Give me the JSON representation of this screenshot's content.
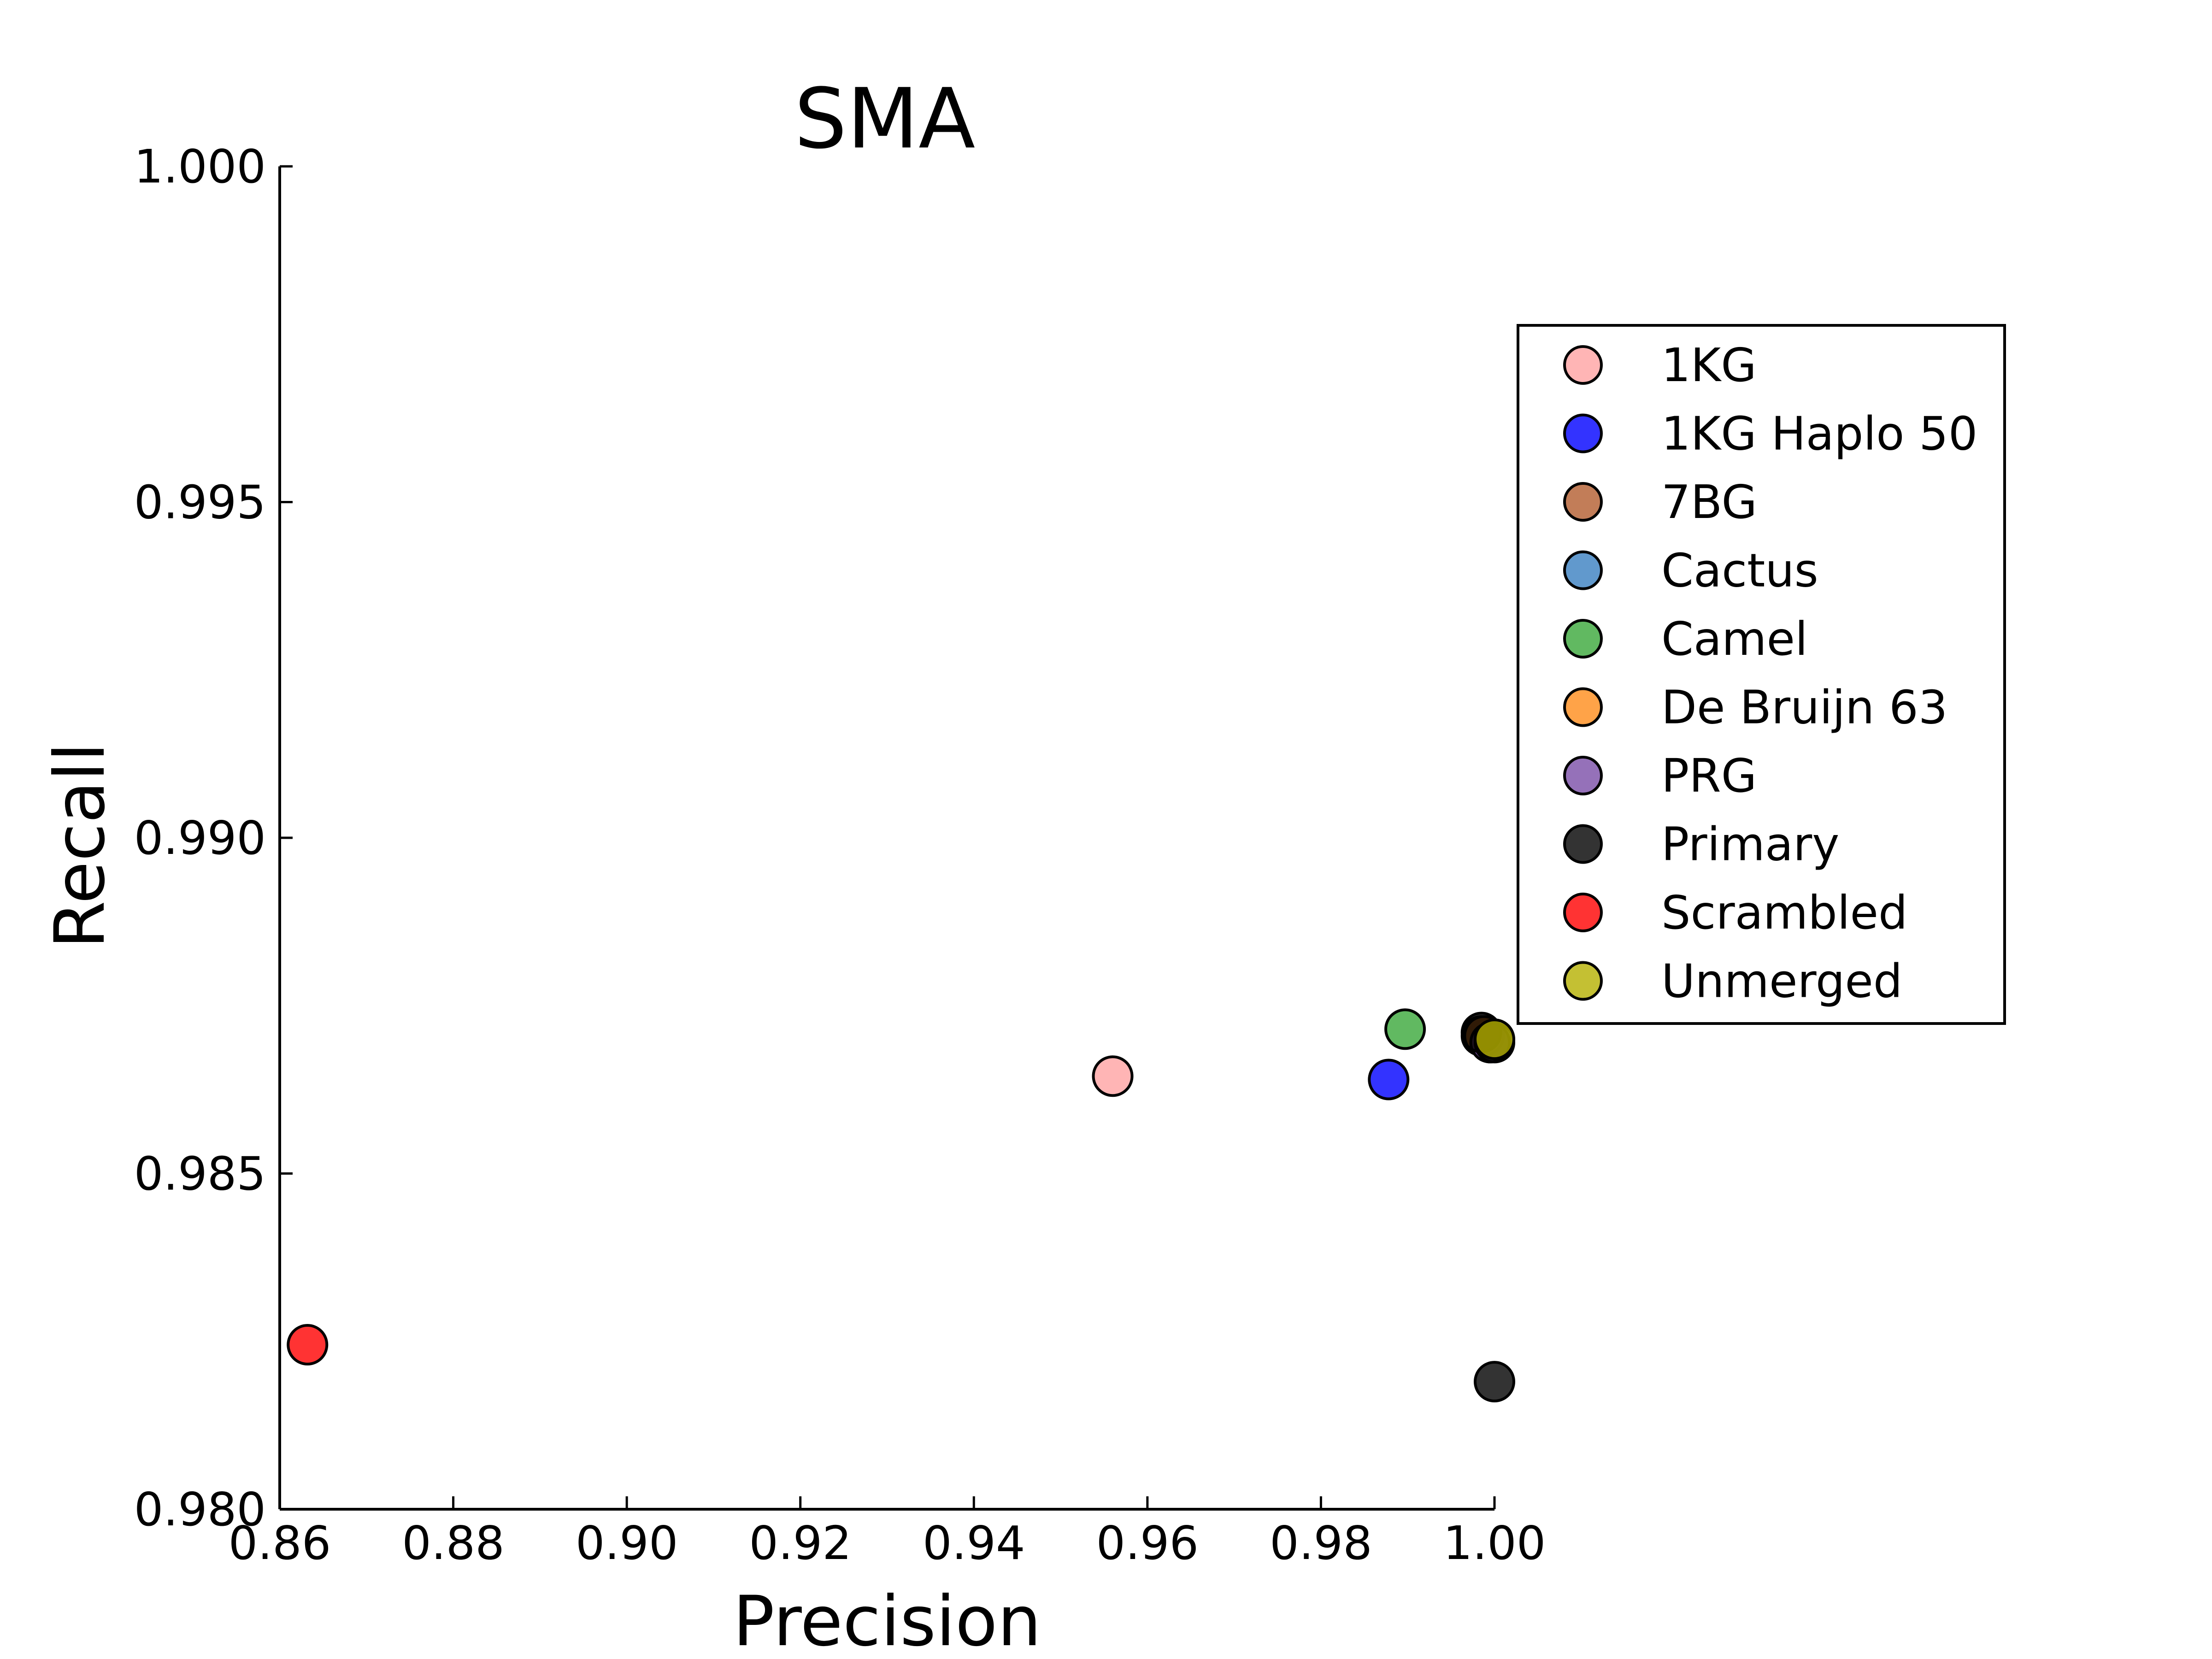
{
  "chart_data": {
    "type": "scatter",
    "title": "SMA",
    "xlabel": "Precision",
    "ylabel": "Recall",
    "xlim": [
      0.86,
      1.0
    ],
    "ylim": [
      0.98,
      1.0
    ],
    "x_ticks": [
      "0.86",
      "0.88",
      "0.90",
      "0.92",
      "0.94",
      "0.96",
      "0.98",
      "1.00"
    ],
    "y_ticks": [
      "0.980",
      "0.985",
      "0.990",
      "0.995",
      "1.000"
    ],
    "grid": false,
    "legend_position": "right",
    "series": [
      {
        "name": "1KG",
        "color": "#ffa3a3",
        "points": [
          {
            "x": 0.956,
            "y": 0.98645
          }
        ]
      },
      {
        "name": "1KG Haplo 50",
        "color": "#0000ff",
        "points": [
          {
            "x": 0.9878,
            "y": 0.9864
          }
        ]
      },
      {
        "name": "7BG",
        "color": "#b35c2e",
        "points": [
          {
            "x": 0.9985,
            "y": 0.98705
          }
        ]
      },
      {
        "name": "Cactus",
        "color": "#3a7fc0",
        "points": [
          {
            "x": 0.9995,
            "y": 0.98695
          }
        ]
      },
      {
        "name": "Camel",
        "color": "#3aa83a",
        "points": [
          {
            "x": 0.9897,
            "y": 0.98715
          }
        ]
      },
      {
        "name": "De Bruijn 63",
        "color": "#ff8c1a",
        "points": [
          {
            "x": 0.9988,
            "y": 0.98705
          }
        ]
      },
      {
        "name": "PRG",
        "color": "#7a4ea8",
        "points": [
          {
            "x": 0.9995,
            "y": 0.98695
          }
        ]
      },
      {
        "name": "Primary",
        "color": "#000000",
        "points": [
          {
            "x": 0.9985,
            "y": 0.9871
          },
          {
            "x": 1.0,
            "y": 0.98695
          },
          {
            "x": 1.0,
            "y": 0.9819
          }
        ]
      },
      {
        "name": "Scrambled",
        "color": "#ff0000",
        "points": [
          {
            "x": 0.8632,
            "y": 0.98245
          }
        ]
      },
      {
        "name": "Unmerged",
        "color": "#b5b000",
        "points": [
          {
            "x": 1.0,
            "y": 0.987
          }
        ]
      }
    ]
  }
}
